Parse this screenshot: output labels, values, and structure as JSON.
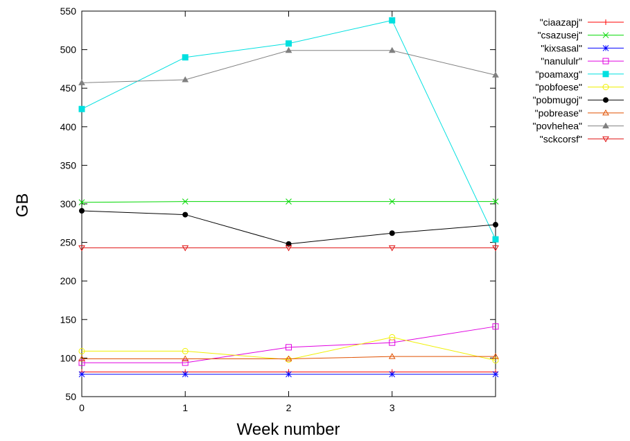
{
  "chart_data": {
    "type": "line",
    "xlabel": "Week number",
    "ylabel": "GB",
    "xlim": [
      0,
      4
    ],
    "ylim": [
      50,
      550
    ],
    "x_ticks": [
      0,
      1,
      2,
      3
    ],
    "y_ticks": [
      50,
      100,
      150,
      200,
      250,
      300,
      350,
      400,
      450,
      500,
      550
    ],
    "legend_position": "top-right, outside plot",
    "x": [
      0,
      1,
      2,
      3,
      4
    ],
    "series": [
      {
        "name": "\"ciaazapj\"",
        "color": "#ff0000",
        "marker": "plus",
        "values": [
          82,
          82,
          82,
          82,
          82
        ]
      },
      {
        "name": "\"csazusej\"",
        "color": "#00d800",
        "marker": "cross",
        "values": [
          302,
          303,
          303,
          303,
          303
        ]
      },
      {
        "name": "\"kixsasal\"",
        "color": "#0000ff",
        "marker": "star",
        "values": [
          79,
          79,
          79,
          79,
          79
        ]
      },
      {
        "name": "\"nanululr\"",
        "color": "#e000e0",
        "marker": "square-open",
        "values": [
          94,
          94,
          114,
          120,
          141
        ]
      },
      {
        "name": "\"poamaxg\"",
        "color": "#00e0e0",
        "marker": "square-filled",
        "values": [
          423,
          490,
          508,
          538,
          254
        ]
      },
      {
        "name": "\"pobfoese\"",
        "color": "#f0f000",
        "marker": "circle-open",
        "values": [
          109,
          109,
          98,
          127,
          97
        ]
      },
      {
        "name": "\"pobmugoj\"",
        "color": "#000000",
        "marker": "circle-filled",
        "values": [
          291,
          286,
          248,
          262,
          273
        ]
      },
      {
        "name": "\"pobrease\"",
        "color": "#e05000",
        "marker": "triangle-open",
        "values": [
          99,
          99,
          99,
          102,
          102
        ]
      },
      {
        "name": "\"povhehea\"",
        "color": "#808080",
        "marker": "triangle-filled",
        "values": [
          457,
          461,
          499,
          499,
          467
        ]
      },
      {
        "name": "\"sckcorsf\"",
        "color": "#e01010",
        "marker": "triangle-down-open",
        "values": [
          243,
          243,
          243,
          243,
          243
        ]
      }
    ]
  }
}
